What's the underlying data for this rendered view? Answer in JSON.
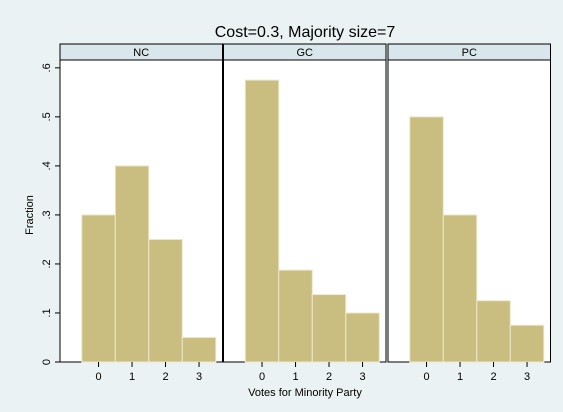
{
  "chart_data": {
    "type": "histogram",
    "title": "Cost=0.3, Majority size=7",
    "xlabel": "Votes for Minority Party",
    "ylabel": "Fraction",
    "bins": [
      -0.5,
      0.5,
      1.5,
      2.5,
      3.5
    ],
    "panels": [
      {
        "name": "NC",
        "values": [
          0.3,
          0.4,
          0.25,
          0.05
        ]
      },
      {
        "name": "GC",
        "values": [
          0.575,
          0.1875,
          0.1375,
          0.1
        ]
      },
      {
        "name": "PC",
        "values": [
          0.5,
          0.3,
          0.125,
          0.075
        ]
      }
    ],
    "color": "#c9bd80",
    "xlim": [
      -1.15,
      3.7
    ],
    "xticks": [
      0,
      1,
      2,
      3
    ],
    "ylim": [
      0,
      0.616
    ],
    "yticks": [
      0,
      {
        "value": 0.1,
        "label": ".1"
      },
      {
        "value": 0.2,
        "label": ".2"
      },
      {
        "value": 0.3,
        "label": ".3"
      },
      {
        "value": 0.4,
        "label": ".4"
      },
      {
        "value": 0.5,
        "label": ".5"
      },
      {
        "value": 0.6,
        "label": ".6"
      }
    ]
  }
}
